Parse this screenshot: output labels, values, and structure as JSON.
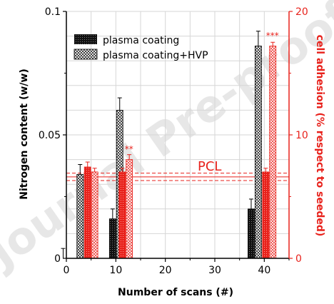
{
  "chart_data": {
    "type": "bar",
    "xlabel": "Number of scans (#)",
    "ylabel_left": "Nitrogen content (w/w)",
    "ylabel_right": "cell adhesion (% respect to seeded)",
    "xlim": [
      0,
      45
    ],
    "ylim_left": [
      0,
      0.1
    ],
    "ylim_right": [
      0,
      20
    ],
    "x_ticks": [
      0,
      10,
      20,
      30,
      40
    ],
    "y_ticks_left": [
      0,
      0.05,
      0.1
    ],
    "y_tick_labels_left": [
      "0",
      "0.05",
      "0.1"
    ],
    "y_ticks_right": [
      0,
      10,
      20
    ],
    "y_tick_labels_right": [
      "0",
      "10",
      "20"
    ],
    "grid": true,
    "legend_position": "top-left",
    "series": [
      {
        "name": "plasma coating",
        "axis": "left",
        "pattern": "solid-black-dots",
        "x": [
          0,
          2,
          10,
          38
        ],
        "values": [
          0,
          null,
          0.016,
          0.02
        ],
        "errors": [
          0.004,
          null,
          0.004,
          0.004
        ]
      },
      {
        "name": "plasma coating+HVP",
        "axis": "left",
        "pattern": "crosshatch-black",
        "x": [
          2,
          10,
          38
        ],
        "values": [
          0.034,
          0.06,
          0.086
        ],
        "errors": [
          0.004,
          0.005,
          0.006
        ]
      },
      {
        "axis": "right",
        "pattern": "solid-red-dots",
        "x": [
          5,
          12,
          41
        ],
        "values": [
          7.4,
          7,
          7
        ],
        "errors": [
          0.4,
          0.3,
          0.3
        ]
      },
      {
        "axis": "right",
        "pattern": "crosshatch-red",
        "x": [
          5,
          12,
          41
        ],
        "values": [
          7,
          8,
          17.2
        ],
        "errors": [
          0.3,
          0.4,
          0.3
        ]
      }
    ],
    "reference_line": {
      "label": "PCL",
      "axis": "right",
      "value": 6.6,
      "band": [
        6.3,
        6.9
      ]
    },
    "annotations": [
      {
        "text": "**",
        "x": 12,
        "y": 8.6,
        "axis": "right"
      },
      {
        "text": "***",
        "x": 41,
        "y": 17.8,
        "axis": "right"
      }
    ],
    "colors": {
      "left_axis": "#000000",
      "right_axis": "#e8221c"
    },
    "watermark": "Journal Pre-proof"
  }
}
